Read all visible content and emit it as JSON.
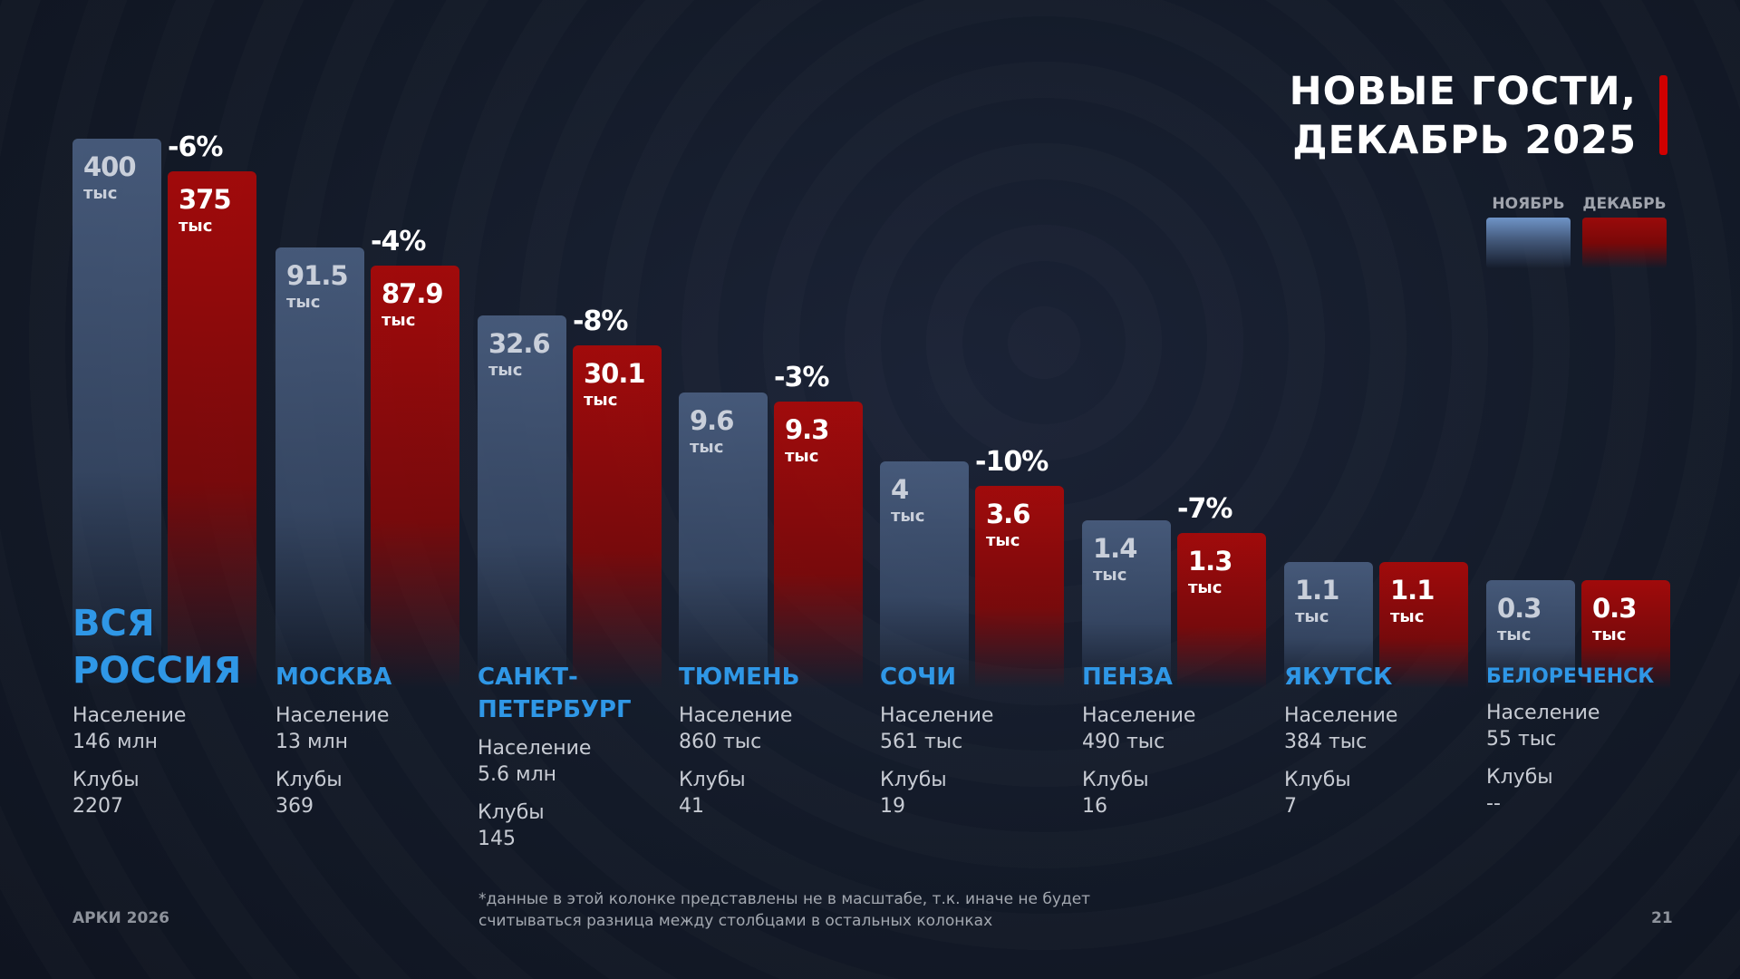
{
  "title": {
    "line1": "НОВЫЕ ГОСТИ,",
    "line2": "ДЕКАБРЬ 2025"
  },
  "legend": {
    "nov": "НОЯБРЬ",
    "dec": "ДЕКАБРЬ"
  },
  "colors": {
    "november": "#485c7d",
    "december": "#a50a0a",
    "city": "#2f97e6",
    "accent": "#d00000"
  },
  "chart_data": {
    "type": "bar",
    "title": "НОВЫЕ ГОСТИ, ДЕКАБРЬ 2025",
    "unit": "тыс",
    "categories": [
      "ВСЯ РОССИЯ",
      "МОСКВА",
      "САНКТ-ПЕТЕРБУРГ",
      "ТЮМЕНЬ",
      "СОЧИ",
      "ПЕНЗА",
      "ЯКУТСК",
      "БЕЛОРЕЧЕНСК"
    ],
    "series": [
      {
        "name": "НОЯБРЬ",
        "values": [
          400,
          91.5,
          32.6,
          9.6,
          4,
          1.4,
          1.1,
          0.3
        ],
        "labels": [
          "400",
          "91.5",
          "32.6",
          "9.6",
          "4",
          "1.4",
          "1.1",
          "0.3"
        ]
      },
      {
        "name": "ДЕКАБРЬ",
        "values": [
          375,
          87.9,
          30.1,
          9.3,
          3.6,
          1.3,
          1.1,
          0.3
        ],
        "labels": [
          "375",
          "87.9",
          "30.1",
          "9.3",
          "3.6",
          "1.3",
          "1.1",
          "0.3"
        ]
      }
    ],
    "changes": [
      "-6%",
      "-4%",
      "-8%",
      "-3%",
      "-10%",
      "-7%",
      "",
      ""
    ],
    "legend": "top-right"
  },
  "columns": [
    {
      "city": "ВСЯ РОССИЯ",
      "pop_label": "Население",
      "pop": "146 млн",
      "clubs_label": "Клубы",
      "clubs": "2207"
    },
    {
      "city": "МОСКВА",
      "pop_label": "Население",
      "pop": "13 млн",
      "clubs_label": "Клубы",
      "clubs": "369"
    },
    {
      "city": "САНКТ-ПЕТЕРБУРГ",
      "pop_label": "Население",
      "pop": "5.6 млн",
      "clubs_label": "Клубы",
      "clubs": "145"
    },
    {
      "city": "ТЮМЕНЬ",
      "pop_label": "Население",
      "pop": "860 тыс",
      "clubs_label": "Клубы",
      "clubs": "41"
    },
    {
      "city": "СОЧИ",
      "pop_label": "Население",
      "pop": "561 тыс",
      "clubs_label": "Клубы",
      "clubs": "19"
    },
    {
      "city": "ПЕНЗА",
      "pop_label": "Население",
      "pop": "490 тыс",
      "clubs_label": "Клубы",
      "clubs": "16"
    },
    {
      "city": "ЯКУТСК",
      "pop_label": "Население",
      "pop": "384 тыс",
      "clubs_label": "Клубы",
      "clubs": "7"
    },
    {
      "city": "БЕЛОРЕЧЕНСК",
      "pop_label": "Население",
      "pop": "55 тыс",
      "clubs_label": "Клубы",
      "clubs": "--"
    }
  ],
  "footer": {
    "brand": "АРКИ 2026",
    "page": "21",
    "note1": "*данные в этой колонке представлены не в масштабе, т.к. иначе не будет",
    "note2": "считываться разница между столбцами в остальных колонках"
  }
}
